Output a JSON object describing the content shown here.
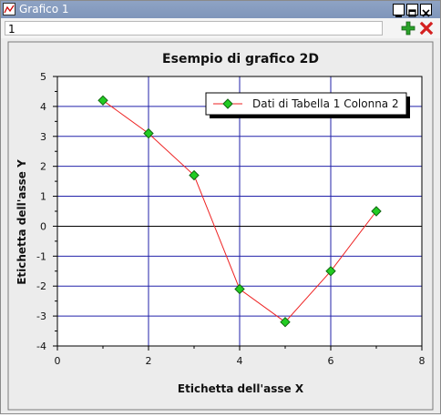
{
  "window": {
    "title": "Grafico 1",
    "tab_value": "1",
    "icons": [
      "app-icon",
      "minimize-icon",
      "maximize-icon",
      "close-icon",
      "add-icon",
      "delete-icon"
    ],
    "colors": {
      "titlebar": "#8ea3c4",
      "accent_add": "#2aa12a",
      "accent_delete": "#d42020"
    }
  },
  "chart_data": {
    "type": "line",
    "title": "Esempio di grafico 2D",
    "xlabel": "Etichetta dell'asse X",
    "ylabel": "Etichetta dell'asse Y",
    "xlim": [
      0,
      8
    ],
    "ylim": [
      -4,
      5
    ],
    "xticks": [
      "0",
      "2",
      "4",
      "6",
      "8"
    ],
    "yticks": [
      "5",
      "4",
      "3",
      "2",
      "1",
      "0",
      "-1",
      "-2",
      "-3",
      "-4"
    ],
    "grid": true,
    "legend_position": "top-right",
    "series": [
      {
        "name": "Dati di Tabella 1 Colonna 2",
        "line_color": "#ee2222",
        "marker_color": "#22cc22",
        "x": [
          1,
          2,
          3,
          4,
          5,
          6,
          7
        ],
        "y": [
          4.2,
          3.1,
          1.7,
          -2.1,
          -3.2,
          -1.5,
          0.5
        ]
      }
    ]
  }
}
